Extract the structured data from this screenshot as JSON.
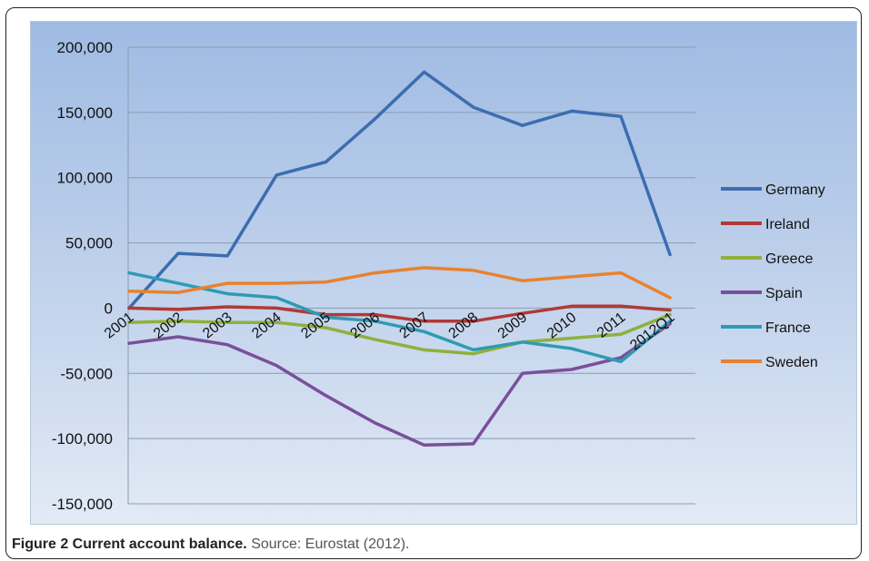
{
  "caption": {
    "label": "Figure 2 Current account balance.",
    "source": "Source: Eurostat (2012)."
  },
  "chart_data": {
    "type": "line",
    "title": "",
    "xlabel": "",
    "ylabel": "",
    "ylim": [
      -150000,
      200000
    ],
    "y_ticks": [
      200000,
      150000,
      100000,
      50000,
      0,
      -50000,
      -100000,
      -150000
    ],
    "y_tick_labels": [
      "200,000",
      "150,000",
      "100,000",
      "50,000",
      "0",
      "-50,000",
      "-100,000",
      "-150,000"
    ],
    "categories": [
      "2001",
      "2002",
      "2003",
      "2004",
      "2005",
      "2006",
      "2007",
      "2008",
      "2009",
      "2010",
      "2011",
      "2012Q1"
    ],
    "grid": "horizontal",
    "legend_position": "right",
    "series": [
      {
        "name": "Germany",
        "color": "#3d6db0",
        "values": [
          0,
          42000,
          40000,
          102000,
          112000,
          145000,
          181000,
          154000,
          140000,
          151000,
          147000,
          41000
        ]
      },
      {
        "name": "Ireland",
        "color": "#b03a36",
        "values": [
          0,
          -1000,
          1000,
          0,
          -5000,
          -5000,
          -10000,
          -10000,
          -4000,
          1500,
          1500,
          -1500
        ]
      },
      {
        "name": "Greece",
        "color": "#8fb03c",
        "values": [
          -11000,
          -10000,
          -11000,
          -11000,
          -15000,
          -24000,
          -32000,
          -35000,
          -26000,
          -23000,
          -20000,
          -5000
        ]
      },
      {
        "name": "Spain",
        "color": "#7a4f9a",
        "values": [
          -27000,
          -22000,
          -28000,
          -44000,
          -67000,
          -88000,
          -105000,
          -104000,
          -50000,
          -47000,
          -38000,
          -12000
        ]
      },
      {
        "name": "France",
        "color": "#2e9bb3",
        "values": [
          27000,
          19000,
          11000,
          8000,
          -7000,
          -10000,
          -18000,
          -32000,
          -26000,
          -31000,
          -41000,
          -10000
        ]
      },
      {
        "name": "Sweden",
        "color": "#e8822e",
        "values": [
          13000,
          12000,
          19000,
          19000,
          20000,
          27000,
          31000,
          29000,
          21000,
          24000,
          27000,
          8000
        ]
      }
    ]
  }
}
